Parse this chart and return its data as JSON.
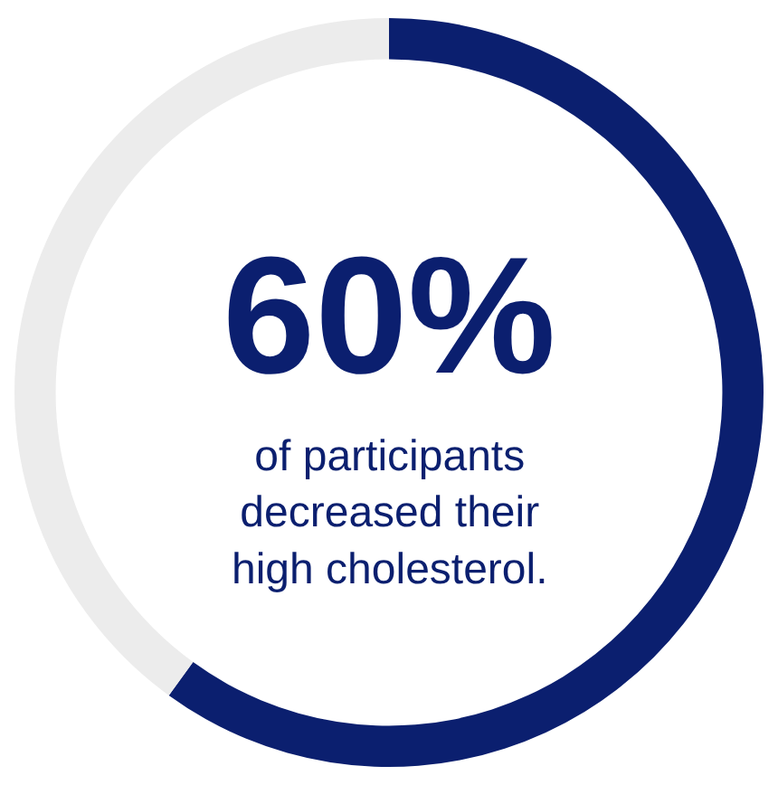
{
  "chart_data": {
    "type": "donut",
    "categories": [
      null,
      null
    ],
    "values": [
      60,
      40
    ],
    "colors": [
      "#0b1f6f",
      "#ececec"
    ],
    "annotations": [
      "60%",
      "of participants\ndecreased their\nhigh cholesterol."
    ],
    "legend": false
  }
}
